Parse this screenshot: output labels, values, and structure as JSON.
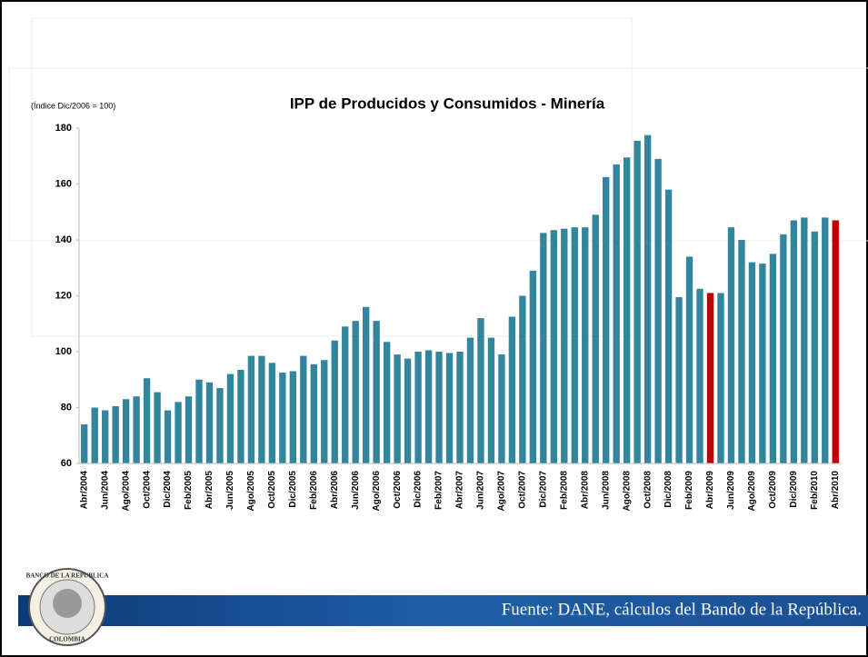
{
  "chart_data": {
    "type": "bar",
    "title": "IPP de Producidos y Consumidos - Minería",
    "subtitle": "(Índice Dic/2006 = 100)",
    "categories": [
      "Abr/2004",
      null,
      "Jun/2004",
      null,
      "Ago/2004",
      null,
      "Oct/2004",
      null,
      "Dic/2004",
      null,
      "Feb/2005",
      null,
      "Abr/2005",
      null,
      "Jun/2005",
      null,
      "Ago/2005",
      null,
      "Oct/2005",
      null,
      "Dic/2005",
      null,
      "Feb/2006",
      null,
      "Abr/2006",
      null,
      "Jun/2006",
      null,
      "Ago/2006",
      null,
      "Oct/2006",
      null,
      "Dic/2006",
      null,
      "Feb/2007",
      null,
      "Abr/2007",
      null,
      "Jun/2007",
      null,
      "Ago/2007",
      null,
      "Oct/2007",
      null,
      "Dic/2007",
      null,
      "Feb/2008",
      null,
      "Abr/2008",
      null,
      "Jun/2008",
      null,
      "Ago/2008",
      null,
      "Oct/2008",
      null,
      "Dic/2008",
      null,
      "Feb/2009",
      null,
      "Abr/2009",
      null,
      "Jun/2009",
      null,
      "Ago/2009",
      null,
      "Oct/2009",
      null,
      "Dic/2009",
      null,
      "Feb/2010",
      null,
      "Abr/2010"
    ],
    "values": [
      74,
      80,
      79,
      80.5,
      83,
      84,
      90.5,
      85.5,
      79,
      82,
      84,
      90,
      89,
      87,
      92,
      93.5,
      98.5,
      98.5,
      96,
      92.5,
      93,
      98.5,
      95.5,
      97,
      104,
      109,
      111,
      116,
      111,
      103.5,
      99,
      97.5,
      100,
      100.5,
      100,
      99.5,
      100,
      105,
      112,
      105,
      99,
      112.5,
      120,
      129,
      142.5,
      143.5,
      144,
      144.5,
      144.5,
      149,
      162.5,
      167,
      169.5,
      175.5,
      177.5,
      169,
      158,
      119.5,
      134,
      122.5,
      121,
      121,
      144.5,
      140,
      132,
      131.5,
      135,
      142,
      147,
      148,
      143,
      148,
      147
    ],
    "colors": [
      "#31859c",
      "#31859c",
      "#31859c",
      "#31859c",
      "#31859c",
      "#31859c",
      "#31859c",
      "#31859c",
      "#31859c",
      "#31859c",
      "#31859c",
      "#31859c",
      "#31859c",
      "#31859c",
      "#31859c",
      "#31859c",
      "#31859c",
      "#31859c",
      "#31859c",
      "#31859c",
      "#31859c",
      "#31859c",
      "#31859c",
      "#31859c",
      "#31859c",
      "#31859c",
      "#31859c",
      "#31859c",
      "#31859c",
      "#31859c",
      "#31859c",
      "#31859c",
      "#31859c",
      "#31859c",
      "#31859c",
      "#31859c",
      "#31859c",
      "#31859c",
      "#31859c",
      "#31859c",
      "#31859c",
      "#31859c",
      "#31859c",
      "#31859c",
      "#31859c",
      "#31859c",
      "#31859c",
      "#31859c",
      "#31859c",
      "#31859c",
      "#31859c",
      "#31859c",
      "#31859c",
      "#31859c",
      "#31859c",
      "#31859c",
      "#31859c",
      "#31859c",
      "#31859c",
      "#31859c",
      "#c00000",
      "#31859c",
      "#31859c",
      "#31859c",
      "#31859c",
      "#31859c",
      "#31859c",
      "#31859c",
      "#31859c",
      "#31859c",
      "#31859c",
      "#31859c",
      "#c00000"
    ],
    "ylim": [
      60,
      180
    ],
    "yticks": [
      60,
      80,
      100,
      120,
      140,
      160,
      180
    ],
    "grid": false
  },
  "footer": {
    "source": "Fuente: DANE, cálculos del Bando de la República.",
    "logo_top": "BANCO DE LA REPUBLICA",
    "logo_bottom": "COLOMBIA"
  }
}
